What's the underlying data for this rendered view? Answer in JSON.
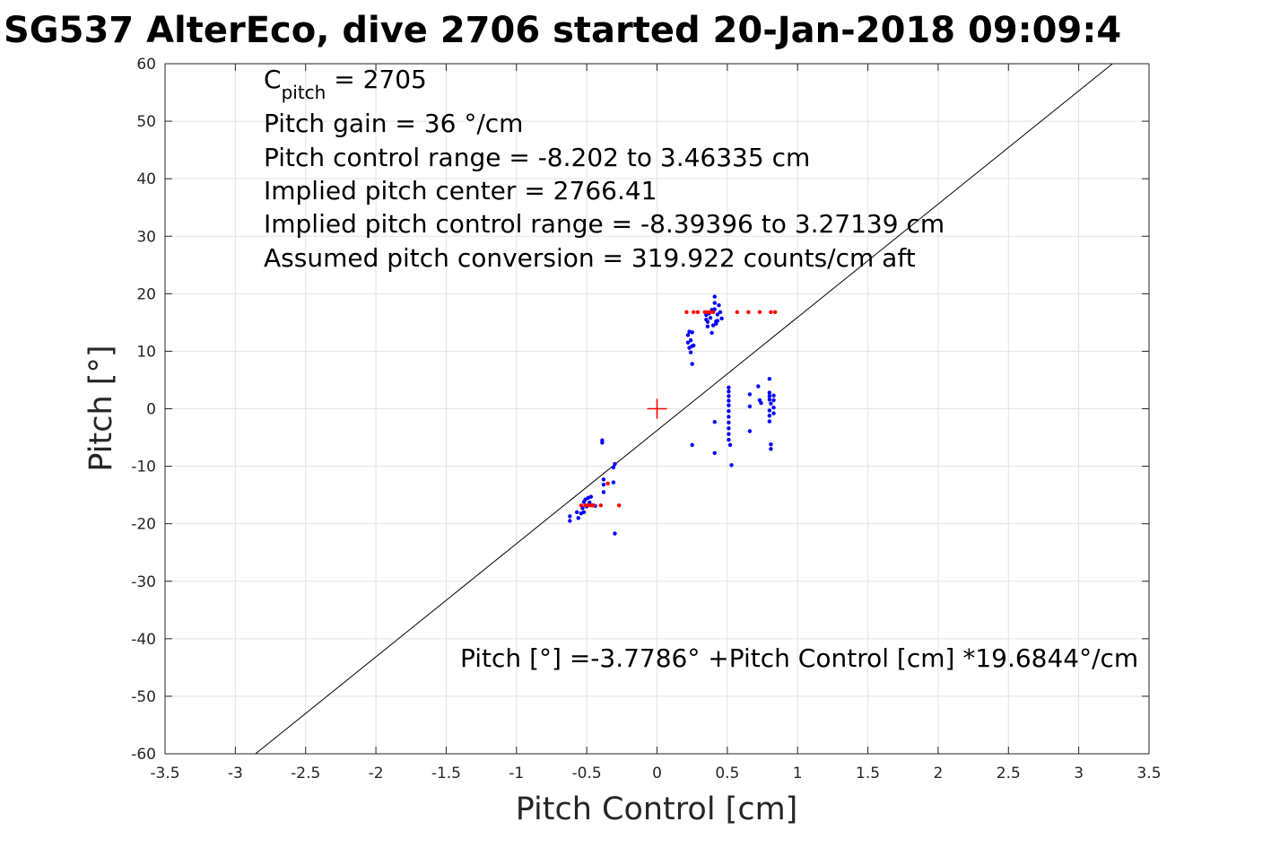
{
  "title": "SG537 AlterEco, dive 2706 started 20-Jan-2018 09:09:4",
  "chart_data": {
    "type": "scatter",
    "title": "SG537 AlterEco, dive 2706 started 20-Jan-2018 09:09:4",
    "xlabel": "Pitch Control [cm]",
    "ylabel": "Pitch [°]",
    "xlim": [
      -3.5,
      3.5
    ],
    "ylim": [
      -60,
      60
    ],
    "xticks": [
      -3.5,
      -3,
      -2.5,
      -2,
      -1.5,
      -1,
      -0.5,
      0,
      0.5,
      1,
      1.5,
      2,
      2.5,
      3,
      3.5
    ],
    "xtick_labels": [
      "-3.5",
      "-3",
      "-2.5",
      "-2",
      "-1.5",
      "-1",
      "-0.5",
      "0",
      "0.5",
      "1",
      "1.5",
      "2",
      "2.5",
      "3",
      "3.5"
    ],
    "yticks": [
      -60,
      -50,
      -40,
      -30,
      -20,
      -10,
      0,
      10,
      20,
      30,
      40,
      50,
      60
    ],
    "ytick_labels": [
      "-60",
      "-50",
      "-40",
      "-30",
      "-20",
      "-10",
      "0",
      "10",
      "20",
      "30",
      "40",
      "50",
      "60"
    ],
    "grid": true,
    "annotations": {
      "cpitch_main": "C",
      "cpitch_sub": "pitch",
      "cpitch_value": " = 2705",
      "pitch_gain": "Pitch gain = 36 °/cm",
      "pitch_control_range": "Pitch control range = -8.202 to 3.46335 cm",
      "implied_center": "Implied pitch center = 2766.41",
      "implied_range": "Implied pitch control range = -8.39396 to 3.27139 cm",
      "assumed_conversion": "Assumed pitch conversion = 319.922 counts/cm aft",
      "fit_equation": "Pitch [°] =-3.7786° +Pitch Control [cm] *19.6844°/cm"
    },
    "fit_line": {
      "intercept": -3.7786,
      "slope": 19.6844,
      "color": "#000000"
    },
    "center_marker": {
      "x": 0,
      "y": 0,
      "color": "#ff0000"
    },
    "series": [
      {
        "color": "#0000ff",
        "points": [
          [
            -0.62,
            -19.5
          ],
          [
            -0.62,
            -18.7
          ],
          [
            -0.57,
            -18.0
          ],
          [
            -0.56,
            -19.0
          ],
          [
            -0.54,
            -18.2
          ],
          [
            -0.52,
            -18.0
          ],
          [
            -0.52,
            -16.2
          ],
          [
            -0.51,
            -15.8
          ],
          [
            -0.5,
            -17.0
          ],
          [
            -0.49,
            -15.5
          ],
          [
            -0.48,
            -16.3
          ],
          [
            -0.47,
            -15.3
          ],
          [
            -0.46,
            -16.8
          ],
          [
            -0.53,
            -17.3
          ],
          [
            -0.44,
            -16.9
          ],
          [
            -0.39,
            -5.5
          ],
          [
            -0.39,
            -5.9
          ],
          [
            -0.38,
            -12.3
          ],
          [
            -0.38,
            -13.2
          ],
          [
            -0.38,
            -14.5
          ],
          [
            -0.31,
            -10.2
          ],
          [
            -0.3,
            -9.6
          ],
          [
            -0.31,
            -12.8
          ],
          [
            -0.3,
            -21.7
          ],
          [
            0.22,
            11.5
          ],
          [
            0.22,
            12.8
          ],
          [
            0.23,
            13.4
          ],
          [
            0.23,
            10.6
          ],
          [
            0.24,
            11.9
          ],
          [
            0.24,
            9.8
          ],
          [
            0.25,
            13.3
          ],
          [
            0.25,
            10.9
          ],
          [
            0.25,
            7.8
          ],
          [
            0.26,
            11.0
          ],
          [
            0.35,
            15.5
          ],
          [
            0.35,
            16.3
          ],
          [
            0.36,
            15.1
          ],
          [
            0.37,
            16.6
          ],
          [
            0.38,
            15.8
          ],
          [
            0.39,
            17.2
          ],
          [
            0.4,
            14.5
          ],
          [
            0.41,
            19.5
          ],
          [
            0.41,
            18.4
          ],
          [
            0.41,
            17.3
          ],
          [
            0.42,
            15.2
          ],
          [
            0.42,
            14.8
          ],
          [
            0.43,
            16.4
          ],
          [
            0.43,
            15.3
          ],
          [
            0.44,
            18.0
          ],
          [
            0.45,
            16.8
          ],
          [
            0.46,
            15.7
          ],
          [
            0.36,
            14.3
          ],
          [
            0.39,
            13.2
          ],
          [
            0.25,
            -6.3
          ],
          [
            0.41,
            -2.3
          ],
          [
            0.41,
            -7.7
          ],
          [
            0.51,
            3.7
          ],
          [
            0.51,
            3.0
          ],
          [
            0.51,
            2.2
          ],
          [
            0.51,
            1.4
          ],
          [
            0.51,
            0.6
          ],
          [
            0.51,
            -0.4
          ],
          [
            0.51,
            -1.4
          ],
          [
            0.51,
            -2.4
          ],
          [
            0.51,
            -3.4
          ],
          [
            0.51,
            -4.4
          ],
          [
            0.51,
            -5.4
          ],
          [
            0.52,
            -6.3
          ],
          [
            0.53,
            -9.8
          ],
          [
            0.66,
            2.5
          ],
          [
            0.66,
            0.4
          ],
          [
            0.66,
            -3.9
          ],
          [
            0.72,
            3.9
          ],
          [
            0.73,
            1.5
          ],
          [
            0.74,
            1.0
          ],
          [
            0.8,
            5.2
          ],
          [
            0.8,
            2.8
          ],
          [
            0.8,
            2.2
          ],
          [
            0.8,
            1.6
          ],
          [
            0.81,
            0.9
          ],
          [
            0.8,
            -0.3
          ],
          [
            0.8,
            -1.2
          ],
          [
            0.8,
            -2.2
          ],
          [
            0.81,
            -6.2
          ],
          [
            0.81,
            -7.0
          ],
          [
            0.83,
            2.3
          ],
          [
            0.83,
            1.5
          ],
          [
            0.83,
            0.2
          ],
          [
            0.83,
            -0.8
          ]
        ]
      },
      {
        "color": "#ff0000",
        "points": [
          [
            -0.54,
            -16.8
          ],
          [
            -0.51,
            -16.8
          ],
          [
            -0.49,
            -16.8
          ],
          [
            -0.47,
            -16.8
          ],
          [
            -0.45,
            -16.8
          ],
          [
            -0.4,
            -16.8
          ],
          [
            -0.35,
            -13.0
          ],
          [
            -0.27,
            -16.8
          ],
          [
            0.21,
            16.8
          ],
          [
            0.26,
            16.8
          ],
          [
            0.29,
            16.8
          ],
          [
            0.34,
            16.8
          ],
          [
            0.36,
            16.8
          ],
          [
            0.38,
            16.8
          ],
          [
            0.4,
            16.8
          ],
          [
            0.57,
            16.8
          ],
          [
            0.65,
            16.8
          ],
          [
            0.73,
            16.8
          ],
          [
            0.81,
            16.8
          ],
          [
            0.84,
            16.8
          ]
        ]
      }
    ]
  }
}
